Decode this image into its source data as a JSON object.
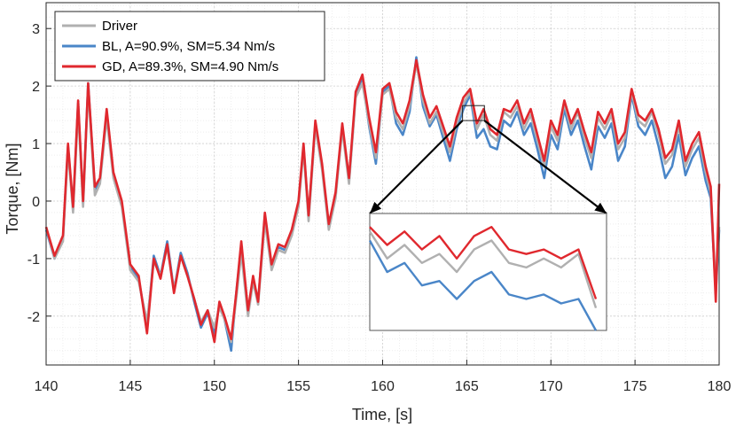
{
  "chart_data": {
    "type": "line",
    "xlabel": "Time, [s]",
    "ylabel": "Torque, [Nm]",
    "xlim": [
      140,
      180
    ],
    "ylim": [
      -2.85,
      3.45
    ],
    "xticks": [
      140,
      145,
      150,
      155,
      160,
      165,
      170,
      175,
      180
    ],
    "yticks": [
      -2,
      -1,
      0,
      1,
      2,
      3
    ],
    "grid": "on (dotted, with minor gridlines)",
    "legend_position": "top-left",
    "colors": {
      "driver": "#b0b0b0",
      "bl": "#4a86c8",
      "gd": "#e0282e"
    },
    "x": [
      140,
      140.5,
      141,
      141.3,
      141.6,
      141.9,
      142.2,
      142.5,
      142.9,
      143.2,
      143.6,
      144.0,
      144.5,
      145.0,
      145.5,
      146.0,
      146.4,
      146.8,
      147.2,
      147.6,
      148.0,
      148.4,
      148.8,
      149.2,
      149.6,
      150.0,
      150.3,
      150.6,
      151.0,
      151.3,
      151.6,
      152.0,
      152.3,
      152.6,
      153.0,
      153.4,
      153.8,
      154.2,
      154.6,
      155.0,
      155.3,
      155.6,
      156.0,
      156.4,
      156.8,
      157.2,
      157.6,
      158.0,
      158.4,
      158.8,
      159.2,
      159.6,
      160.0,
      160.4,
      160.8,
      161.2,
      161.6,
      162.0,
      162.4,
      162.8,
      163.2,
      163.6,
      164.0,
      164.4,
      164.8,
      165.2,
      165.6,
      166.0,
      166.4,
      166.8,
      167.2,
      167.6,
      168.0,
      168.4,
      168.8,
      169.2,
      169.6,
      170.0,
      170.4,
      170.8,
      171.2,
      171.6,
      172.0,
      172.4,
      172.8,
      173.2,
      173.6,
      174.0,
      174.4,
      174.8,
      175.2,
      175.6,
      176.0,
      176.4,
      176.8,
      177.2,
      177.6,
      178.0,
      178.4,
      178.8,
      179.2,
      179.5,
      179.8,
      180.0
    ],
    "series": [
      {
        "name": "Driver",
        "values": [
          -0.45,
          -1.0,
          -0.7,
          0.9,
          -0.2,
          1.6,
          -0.1,
          1.95,
          0.1,
          0.3,
          1.45,
          0.4,
          -0.1,
          -1.2,
          -1.4,
          -2.1,
          -1.05,
          -1.3,
          -0.8,
          -1.55,
          -0.95,
          -1.3,
          -1.7,
          -2.1,
          -1.9,
          -2.2,
          -1.85,
          -2.05,
          -2.45,
          -1.7,
          -0.9,
          -2.0,
          -1.4,
          -1.8,
          -0.35,
          -1.2,
          -0.85,
          -0.9,
          -0.6,
          -0.1,
          0.9,
          -0.35,
          1.3,
          0.55,
          -0.5,
          0.05,
          1.25,
          0.3,
          1.8,
          2.05,
          1.35,
          0.75,
          1.85,
          1.95,
          1.45,
          1.25,
          1.65,
          2.4,
          1.75,
          1.35,
          1.55,
          1.2,
          0.85,
          1.35,
          1.7,
          1.9,
          1.25,
          1.5,
          1.15,
          1.05,
          1.55,
          1.45,
          1.65,
          1.25,
          1.5,
          1.05,
          0.6,
          1.3,
          1.05,
          1.7,
          1.25,
          1.55,
          1.1,
          0.75,
          1.45,
          1.25,
          1.5,
          0.9,
          1.1,
          1.9,
          1.4,
          1.3,
          1.55,
          1.15,
          0.65,
          0.8,
          1.3,
          0.6,
          0.9,
          1.1,
          0.5,
          0.15,
          -1.5,
          -0.45
        ]
      },
      {
        "name": "BL, A=90.9%, SM=5.34 Nm/s",
        "values": [
          -0.5,
          -1.0,
          -0.65,
          0.95,
          -0.15,
          1.7,
          -0.05,
          2.05,
          0.2,
          0.35,
          1.55,
          0.45,
          -0.05,
          -1.15,
          -1.35,
          -2.2,
          -0.95,
          -1.3,
          -0.7,
          -1.55,
          -0.9,
          -1.25,
          -1.75,
          -2.2,
          -1.95,
          -2.3,
          -1.8,
          -2.05,
          -2.6,
          -1.6,
          -0.8,
          -1.95,
          -1.35,
          -1.75,
          -0.25,
          -1.15,
          -0.8,
          -0.85,
          -0.55,
          -0.05,
          0.95,
          -0.3,
          1.35,
          0.6,
          -0.45,
          0.1,
          1.3,
          0.35,
          1.85,
          2.15,
          1.3,
          0.65,
          1.9,
          2.0,
          1.35,
          1.15,
          1.55,
          2.5,
          1.65,
          1.3,
          1.5,
          1.1,
          0.7,
          1.25,
          1.6,
          1.85,
          1.1,
          1.25,
          0.95,
          0.9,
          1.4,
          1.3,
          1.55,
          1.15,
          1.35,
          0.9,
          0.4,
          1.15,
          0.9,
          1.6,
          1.15,
          1.4,
          0.95,
          0.55,
          1.3,
          1.1,
          1.35,
          0.7,
          0.95,
          1.85,
          1.3,
          1.15,
          1.4,
          0.95,
          0.4,
          0.6,
          1.15,
          0.45,
          0.75,
          0.95,
          0.35,
          0.05,
          -1.6,
          -0.5
        ]
      },
      {
        "name": "GD, A=89.3%, SM=4.90 Nm/s",
        "values": [
          -0.45,
          -0.95,
          -0.6,
          1.0,
          -0.1,
          1.75,
          0.0,
          2.05,
          0.25,
          0.4,
          1.6,
          0.5,
          0.0,
          -1.1,
          -1.3,
          -2.3,
          -1.0,
          -1.35,
          -0.75,
          -1.6,
          -0.95,
          -1.3,
          -1.7,
          -2.15,
          -1.9,
          -2.45,
          -1.75,
          -2.0,
          -2.4,
          -1.6,
          -0.7,
          -1.9,
          -1.3,
          -1.75,
          -0.2,
          -1.1,
          -0.75,
          -0.8,
          -0.5,
          0.0,
          1.0,
          -0.25,
          1.4,
          0.65,
          -0.4,
          0.15,
          1.35,
          0.4,
          1.9,
          2.2,
          1.45,
          0.85,
          1.95,
          2.05,
          1.55,
          1.35,
          1.75,
          2.45,
          1.85,
          1.45,
          1.65,
          1.3,
          0.95,
          1.45,
          1.8,
          1.95,
          1.35,
          1.6,
          1.25,
          1.15,
          1.6,
          1.55,
          1.75,
          1.35,
          1.6,
          1.15,
          0.7,
          1.4,
          1.15,
          1.75,
          1.35,
          1.6,
          1.2,
          0.85,
          1.55,
          1.35,
          1.6,
          1.0,
          1.2,
          1.95,
          1.5,
          1.4,
          1.6,
          1.25,
          0.75,
          0.9,
          1.4,
          0.7,
          1.0,
          1.2,
          0.6,
          0.25,
          -1.75,
          0.3
        ]
      }
    ],
    "inset": {
      "xlim": [
        164.75,
        166.05
      ],
      "ylim": [
        1.4,
        1.66
      ],
      "x": [
        164.75,
        164.85,
        164.95,
        165.05,
        165.15,
        165.25,
        165.35,
        165.45,
        165.55,
        165.65,
        165.75,
        165.85,
        165.95,
        166.05
      ],
      "series": [
        {
          "name": "Driver",
          "values": [
            1.62,
            1.56,
            1.59,
            1.55,
            1.57,
            1.53,
            1.58,
            1.6,
            1.55,
            1.54,
            1.56,
            1.54,
            1.57,
            1.45
          ]
        },
        {
          "name": "BL, A=90.9%, SM=5.34 Nm/s",
          "values": [
            1.6,
            1.53,
            1.55,
            1.5,
            1.51,
            1.47,
            1.51,
            1.53,
            1.48,
            1.47,
            1.48,
            1.46,
            1.47,
            1.38
          ]
        },
        {
          "name": "GD, A=89.3%, SM=4.90 Nm/s",
          "values": [
            1.63,
            1.59,
            1.62,
            1.58,
            1.61,
            1.56,
            1.61,
            1.63,
            1.58,
            1.57,
            1.58,
            1.56,
            1.58,
            1.47
          ]
        }
      ]
    }
  }
}
